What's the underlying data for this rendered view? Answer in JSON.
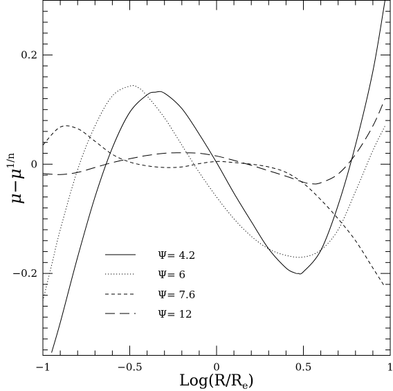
{
  "chart_data": {
    "type": "line",
    "xlim": [
      -1,
      1
    ],
    "ylim": [
      -0.35,
      0.3
    ],
    "xticks": [
      -1,
      -0.5,
      0,
      0.5,
      1
    ],
    "xtick_labels": [
      "−1",
      "−0.5",
      "0",
      "0.5",
      "1"
    ],
    "yticks": [
      -0.2,
      0,
      0.2
    ],
    "ytick_labels": [
      "−0.2",
      "0",
      "0.2"
    ],
    "xlabel": "Log(R/R",
    "xlabel_sub": "e",
    "xlabel_tail": ")",
    "ylabel": "μ−μ",
    "ylabel_sup": "1/n",
    "legend_position": "lower-left",
    "series": [
      {
        "name": "Ψ=  4.2",
        "dash": "solid",
        "x": [
          -0.95,
          -0.9,
          -0.8,
          -0.7,
          -0.6,
          -0.5,
          -0.4,
          -0.35,
          -0.3,
          -0.2,
          -0.1,
          0,
          0.1,
          0.2,
          0.3,
          0.4,
          0.45,
          0.47,
          0.5,
          0.6,
          0.7,
          0.8,
          0.9,
          0.97
        ],
        "y": [
          -0.345,
          -0.29,
          -0.17,
          -0.06,
          0.03,
          0.095,
          0.127,
          0.132,
          0.13,
          0.102,
          0.055,
          0.003,
          -0.053,
          -0.105,
          -0.155,
          -0.19,
          -0.199,
          -0.2,
          -0.197,
          -0.158,
          -0.075,
          0.035,
          0.17,
          0.3
        ]
      },
      {
        "name": "Ψ=  6",
        "dash": "dotted",
        "x": [
          -1,
          -0.95,
          -0.9,
          -0.8,
          -0.7,
          -0.6,
          -0.5,
          -0.45,
          -0.4,
          -0.3,
          -0.2,
          -0.1,
          0,
          0.1,
          0.2,
          0.3,
          0.4,
          0.5,
          0.6,
          0.7,
          0.8,
          0.9,
          0.97
        ],
        "y": [
          -0.25,
          -0.185,
          -0.12,
          -0.01,
          0.07,
          0.125,
          0.143,
          0.14,
          0.125,
          0.085,
          0.035,
          -0.015,
          -0.06,
          -0.1,
          -0.132,
          -0.155,
          -0.167,
          -0.17,
          -0.157,
          -0.12,
          -0.05,
          0.025,
          0.07
        ]
      },
      {
        "name": "Ψ=  7.6",
        "dash": "dashed",
        "x": [
          -1,
          -0.9,
          -0.8,
          -0.7,
          -0.6,
          -0.5,
          -0.4,
          -0.3,
          -0.2,
          -0.1,
          0,
          0.1,
          0.2,
          0.3,
          0.4,
          0.5,
          0.6,
          0.7,
          0.8,
          0.9,
          0.97
        ],
        "y": [
          0.035,
          0.068,
          0.065,
          0.042,
          0.018,
          0.004,
          -0.003,
          -0.006,
          -0.005,
          0.001,
          0.005,
          0.003,
          0,
          -0.005,
          -0.015,
          -0.035,
          -0.065,
          -0.1,
          -0.14,
          -0.19,
          -0.225
        ]
      },
      {
        "name": "Ψ=  12",
        "dash": "long-dashed",
        "x": [
          -1,
          -0.9,
          -0.8,
          -0.7,
          -0.6,
          -0.5,
          -0.4,
          -0.3,
          -0.2,
          -0.1,
          0,
          0.1,
          0.2,
          0.3,
          0.4,
          0.5,
          0.55,
          0.6,
          0.7,
          0.8,
          0.9,
          0.97
        ],
        "y": [
          -0.017,
          -0.019,
          -0.015,
          -0.006,
          0.003,
          0.01,
          0.016,
          0.02,
          0.021,
          0.02,
          0.015,
          0.007,
          -0.002,
          -0.012,
          -0.022,
          -0.033,
          -0.036,
          -0.034,
          -0.018,
          0.018,
          0.07,
          0.12
        ]
      }
    ]
  }
}
